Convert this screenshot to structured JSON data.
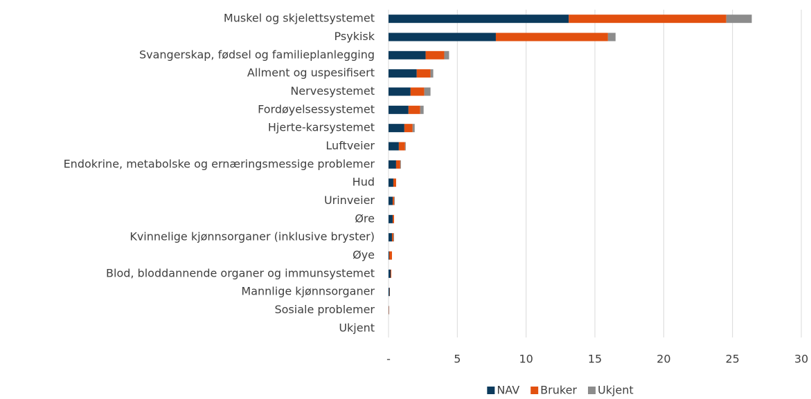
{
  "chart_data": {
    "type": "bar",
    "orientation": "horizontal",
    "stacked": true,
    "categories": [
      "Muskel og skjelettsystemet",
      "Psykisk",
      "Svangerskap, fødsel og familieplanlegging",
      "Allment og uspesifisert",
      "Nervesystemet",
      "Fordøyelsessystemet",
      "Hjerte-karsystemet",
      "Luftveier",
      "Endokrine, metabolske og ernæringsmessige problemer",
      "Hud",
      "Urinveier",
      "Øre",
      "Kvinnelige kjønnsorganer (inklusive bryster)",
      "Øye",
      "Blod, bloddannende organer og immunsystemet",
      "Mannlige kjønnsorganer",
      "Sosiale problemer",
      "Ukjent"
    ],
    "series": [
      {
        "name": "NAV",
        "color": "#0b3a5c",
        "values": [
          13.1,
          7.8,
          2.7,
          2.05,
          1.6,
          1.45,
          1.15,
          0.75,
          0.55,
          0.35,
          0.3,
          0.3,
          0.25,
          0.05,
          0.15,
          0.08,
          0.02,
          0
        ]
      },
      {
        "name": "Bruker",
        "color": "#e2500f",
        "values": [
          11.45,
          8.15,
          1.35,
          1.0,
          1.0,
          0.85,
          0.6,
          0.45,
          0.3,
          0.2,
          0.1,
          0.1,
          0.1,
          0.2,
          0.05,
          0.02,
          0.02,
          0
        ]
      },
      {
        "name": "Ukjent",
        "color": "#8c8c8c",
        "values": [
          1.85,
          0.55,
          0.35,
          0.2,
          0.45,
          0.25,
          0.15,
          0.05,
          0.05,
          0,
          0.05,
          0,
          0.05,
          0,
          0,
          0,
          0,
          0
        ]
      }
    ],
    "xlim": [
      0,
      30
    ],
    "xticks": [
      {
        "value": 0,
        "label": "-"
      },
      5,
      10,
      15,
      20,
      25,
      30
    ],
    "grid": true,
    "legend": "bottom"
  }
}
